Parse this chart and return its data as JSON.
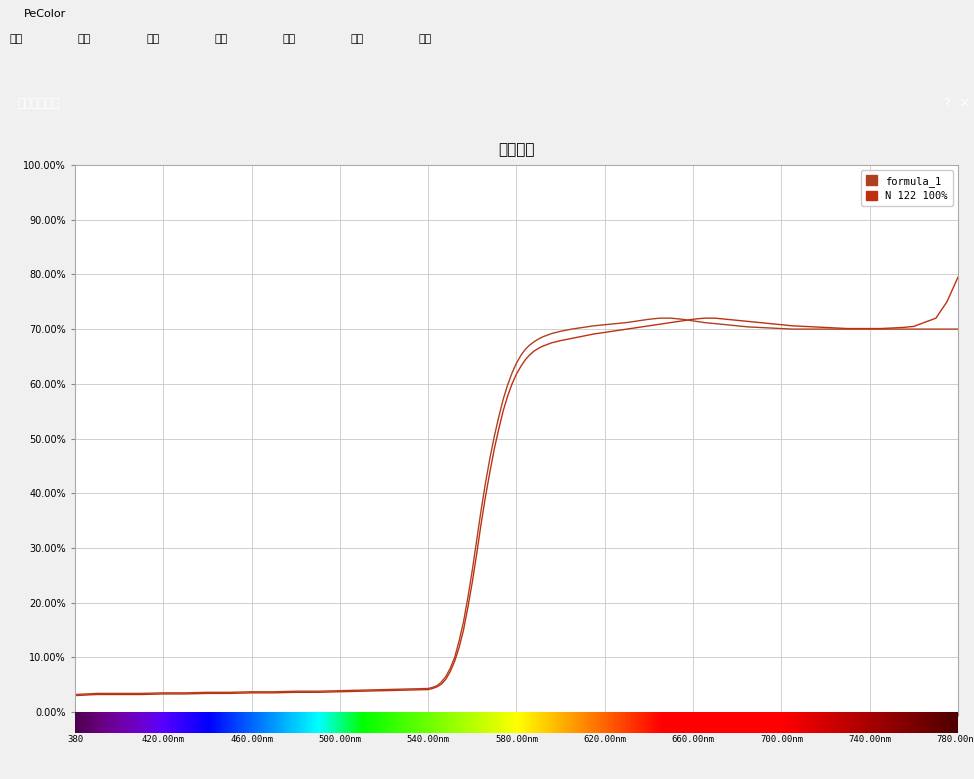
{
  "title": "光谱曲线",
  "chart_title": "光谱曲线",
  "x_min": 380,
  "x_max": 780,
  "y_min": 0.0,
  "y_max": 1.0,
  "y_ticks": [
    0.0,
    0.1,
    0.2,
    0.3,
    0.4,
    0.5,
    0.6,
    0.7,
    0.8,
    0.9,
    1.0
  ],
  "x_ticks": [
    380,
    420,
    460,
    500,
    540,
    580,
    620,
    660,
    700,
    740,
    780
  ],
  "legend_labels": [
    "formula_1",
    "N 122 100%"
  ],
  "line1_color": "#b04020",
  "line2_color": "#c03010",
  "background_color": "#ffffff",
  "grid_color": "#d0d0d0",
  "window_bg": "#f0f0f0",
  "chart_bg": "#f4f4f4",
  "title_bar_color": "#1464c8",
  "win_title_bar_color": "#f0f0f0",
  "scrollbar_color": "#c8c8c8",
  "formula1_x": [
    380,
    390,
    400,
    410,
    420,
    430,
    440,
    450,
    460,
    470,
    480,
    490,
    500,
    510,
    520,
    530,
    540,
    542,
    544,
    546,
    548,
    550,
    552,
    554,
    556,
    558,
    560,
    562,
    564,
    566,
    568,
    570,
    572,
    574,
    576,
    578,
    580,
    582,
    584,
    586,
    588,
    590,
    592,
    594,
    596,
    598,
    600,
    605,
    610,
    615,
    620,
    625,
    630,
    635,
    640,
    645,
    650,
    655,
    660,
    665,
    670,
    675,
    680,
    685,
    690,
    695,
    700,
    705,
    710,
    715,
    720,
    725,
    730,
    735,
    740,
    745,
    750,
    755,
    760,
    780
  ],
  "formula1_y": [
    0.032,
    0.034,
    0.034,
    0.034,
    0.035,
    0.035,
    0.036,
    0.036,
    0.037,
    0.037,
    0.038,
    0.038,
    0.039,
    0.04,
    0.041,
    0.042,
    0.043,
    0.045,
    0.048,
    0.055,
    0.065,
    0.08,
    0.1,
    0.13,
    0.165,
    0.21,
    0.26,
    0.315,
    0.37,
    0.42,
    0.465,
    0.505,
    0.54,
    0.572,
    0.598,
    0.62,
    0.638,
    0.652,
    0.663,
    0.671,
    0.677,
    0.682,
    0.686,
    0.689,
    0.692,
    0.694,
    0.696,
    0.7,
    0.703,
    0.706,
    0.708,
    0.71,
    0.712,
    0.715,
    0.718,
    0.72,
    0.72,
    0.718,
    0.715,
    0.712,
    0.71,
    0.708,
    0.706,
    0.704,
    0.703,
    0.702,
    0.701,
    0.7,
    0.7,
    0.7,
    0.7,
    0.7,
    0.7,
    0.7,
    0.7,
    0.7,
    0.7,
    0.7,
    0.7,
    0.7
  ],
  "n122_x": [
    380,
    390,
    400,
    410,
    420,
    430,
    440,
    450,
    460,
    470,
    480,
    490,
    500,
    510,
    520,
    530,
    540,
    542,
    544,
    546,
    548,
    550,
    552,
    554,
    556,
    558,
    560,
    562,
    564,
    566,
    568,
    570,
    572,
    574,
    576,
    578,
    580,
    582,
    584,
    586,
    588,
    590,
    592,
    594,
    596,
    598,
    600,
    605,
    610,
    615,
    620,
    625,
    630,
    635,
    640,
    645,
    650,
    655,
    660,
    665,
    670,
    675,
    680,
    685,
    690,
    695,
    700,
    705,
    710,
    715,
    720,
    725,
    730,
    735,
    740,
    745,
    750,
    755,
    760,
    770,
    775,
    780
  ],
  "n122_y": [
    0.03,
    0.032,
    0.032,
    0.032,
    0.033,
    0.033,
    0.034,
    0.034,
    0.035,
    0.035,
    0.036,
    0.036,
    0.037,
    0.038,
    0.039,
    0.04,
    0.041,
    0.043,
    0.046,
    0.051,
    0.06,
    0.074,
    0.093,
    0.118,
    0.15,
    0.192,
    0.238,
    0.29,
    0.345,
    0.395,
    0.44,
    0.482,
    0.518,
    0.551,
    0.578,
    0.6,
    0.618,
    0.632,
    0.644,
    0.653,
    0.66,
    0.665,
    0.669,
    0.672,
    0.675,
    0.677,
    0.679,
    0.683,
    0.687,
    0.691,
    0.694,
    0.697,
    0.7,
    0.703,
    0.706,
    0.709,
    0.712,
    0.715,
    0.718,
    0.72,
    0.72,
    0.718,
    0.716,
    0.714,
    0.712,
    0.71,
    0.708,
    0.706,
    0.705,
    0.704,
    0.703,
    0.702,
    0.701,
    0.701,
    0.701,
    0.701,
    0.702,
    0.703,
    0.705,
    0.72,
    0.75,
    0.795
  ]
}
